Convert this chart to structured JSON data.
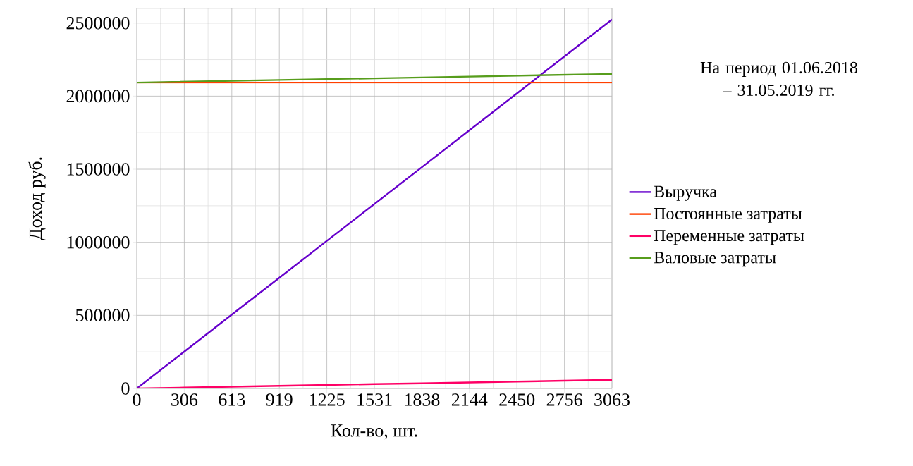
{
  "chart_data": {
    "type": "line",
    "xlabel": "Кол-во, шт.",
    "ylabel": "Доход  руб.",
    "annotations": [
      "На период 01.06.2018 – 31.05.2019 гг."
    ],
    "categories": [
      "0",
      "306",
      "613",
      "919",
      "1225",
      "1531",
      "1838",
      "2144",
      "2450",
      "2756",
      "3063"
    ],
    "ylim": [
      0,
      2600000
    ],
    "yticks": [
      0,
      500000,
      1000000,
      1500000,
      2000000,
      2500000
    ],
    "grid": true,
    "legend": "right",
    "marker": "none",
    "line_style": "solid",
    "series": [
      {
        "name": "Выручка",
        "color": "#6600cc",
        "values": [
          0,
          252000,
          505000,
          757000,
          1010000,
          1262000,
          1514000,
          1767000,
          2019000,
          2272000,
          2524000
        ]
      },
      {
        "name": "Постоянные затраты",
        "color": "#ff4000",
        "values": [
          2093000,
          2093000,
          2093000,
          2093000,
          2093000,
          2093000,
          2093000,
          2093000,
          2093000,
          2093000,
          2093000
        ]
      },
      {
        "name": "Переменные затраты",
        "color": "#ff0066",
        "values": [
          0,
          6000,
          12000,
          18000,
          24000,
          30000,
          35000,
          41000,
          47000,
          53000,
          59000
        ]
      },
      {
        "name": "Валовые затраты",
        "color": "#579d1c",
        "values": [
          2093000,
          2099000,
          2105000,
          2111000,
          2117000,
          2122000,
          2128000,
          2134000,
          2140000,
          2146000,
          2152000
        ]
      }
    ]
  }
}
